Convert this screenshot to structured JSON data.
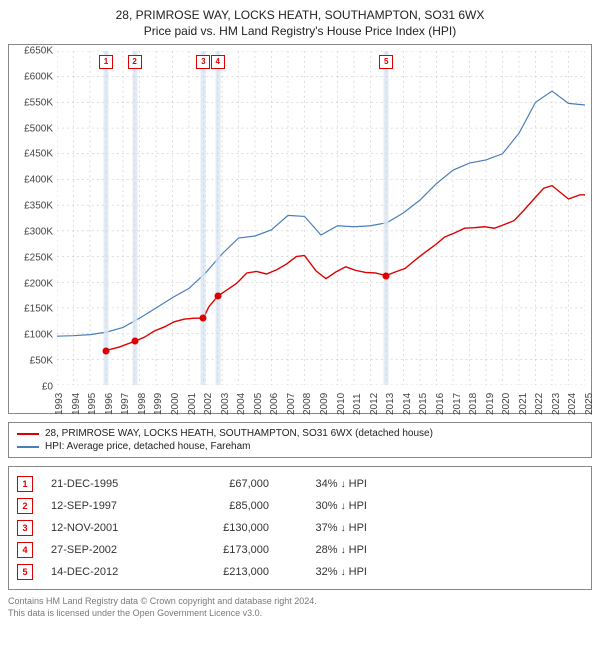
{
  "title": "28, PRIMROSE WAY, LOCKS HEATH, SOUTHAMPTON, SO31 6WX",
  "subtitle": "Price paid vs. HM Land Registry's House Price Index (HPI)",
  "chart": {
    "type": "line",
    "background_color": "#ffffff",
    "grid_color": "#bbbbbb",
    "border_color": "#888888",
    "x": {
      "min": 1993,
      "max": 2025,
      "ticks": [
        1993,
        1994,
        1995,
        1996,
        1997,
        1998,
        1999,
        2000,
        2001,
        2002,
        2003,
        2004,
        2005,
        2006,
        2007,
        2008,
        2009,
        2010,
        2011,
        2012,
        2013,
        2014,
        2015,
        2016,
        2017,
        2018,
        2019,
        2020,
        2021,
        2022,
        2023,
        2024,
        2025
      ]
    },
    "y": {
      "min": 0,
      "max": 650000,
      "ticks": [
        0,
        50000,
        100000,
        150000,
        200000,
        250000,
        300000,
        350000,
        400000,
        450000,
        500000,
        550000,
        600000,
        650000
      ],
      "tick_labels": [
        "£0",
        "£50K",
        "£100K",
        "£150K",
        "£200K",
        "£250K",
        "£300K",
        "£350K",
        "£400K",
        "£450K",
        "£500K",
        "£550K",
        "£600K",
        "£650K"
      ]
    },
    "event_band_color": "#d9e6f2",
    "series": [
      {
        "name": "28, PRIMROSE WAY, LOCKS HEATH, SOUTHAMPTON, SO31 6WX (detached house)",
        "color": "#dd0000",
        "line_width": 1.4,
        "data": [
          [
            1995.97,
            67000
          ],
          [
            1996.3,
            70000
          ],
          [
            1996.8,
            74000
          ],
          [
            1997.7,
            85000
          ],
          [
            1998.3,
            93000
          ],
          [
            1998.9,
            105000
          ],
          [
            1999.5,
            113000
          ],
          [
            2000.1,
            123000
          ],
          [
            2000.7,
            128000
          ],
          [
            2001.3,
            130000
          ],
          [
            2001.87,
            130000
          ],
          [
            2002.2,
            152000
          ],
          [
            2002.74,
            173000
          ],
          [
            2003.3,
            185000
          ],
          [
            2003.9,
            198000
          ],
          [
            2004.5,
            218000
          ],
          [
            2005.1,
            221000
          ],
          [
            2005.7,
            216000
          ],
          [
            2006.3,
            224000
          ],
          [
            2006.9,
            235000
          ],
          [
            2007.5,
            250000
          ],
          [
            2008.0,
            252000
          ],
          [
            2008.7,
            222000
          ],
          [
            2009.3,
            207000
          ],
          [
            2009.9,
            220000
          ],
          [
            2010.5,
            230000
          ],
          [
            2011.1,
            223000
          ],
          [
            2011.7,
            219000
          ],
          [
            2012.3,
            218000
          ],
          [
            2012.95,
            213000
          ],
          [
            2013.5,
            220000
          ],
          [
            2014.1,
            227000
          ],
          [
            2014.7,
            243000
          ],
          [
            2015.3,
            258000
          ],
          [
            2015.9,
            272000
          ],
          [
            2016.5,
            288000
          ],
          [
            2017.1,
            296000
          ],
          [
            2017.7,
            305000
          ],
          [
            2018.3,
            306000
          ],
          [
            2018.9,
            308000
          ],
          [
            2019.5,
            305000
          ],
          [
            2020.1,
            312000
          ],
          [
            2020.7,
            320000
          ],
          [
            2021.3,
            340000
          ],
          [
            2021.9,
            362000
          ],
          [
            2022.5,
            383000
          ],
          [
            2023.0,
            388000
          ],
          [
            2023.5,
            375000
          ],
          [
            2024.0,
            362000
          ],
          [
            2024.7,
            370000
          ],
          [
            2025.0,
            370000
          ]
        ]
      },
      {
        "name": "HPI: Average price, detached house, Fareham",
        "color": "#4a7ebb",
        "line_width": 1.2,
        "data": [
          [
            1993.0,
            95000
          ],
          [
            1994.0,
            96000
          ],
          [
            1995.0,
            98000
          ],
          [
            1996.0,
            103000
          ],
          [
            1997.0,
            112000
          ],
          [
            1998.0,
            130000
          ],
          [
            1999.0,
            150000
          ],
          [
            2000.0,
            170000
          ],
          [
            2001.0,
            188000
          ],
          [
            2002.0,
            218000
          ],
          [
            2003.0,
            255000
          ],
          [
            2004.0,
            286000
          ],
          [
            2005.0,
            290000
          ],
          [
            2006.0,
            302000
          ],
          [
            2007.0,
            330000
          ],
          [
            2008.0,
            328000
          ],
          [
            2009.0,
            292000
          ],
          [
            2010.0,
            310000
          ],
          [
            2011.0,
            308000
          ],
          [
            2012.0,
            310000
          ],
          [
            2013.0,
            316000
          ],
          [
            2014.0,
            335000
          ],
          [
            2015.0,
            360000
          ],
          [
            2016.0,
            392000
          ],
          [
            2017.0,
            418000
          ],
          [
            2018.0,
            432000
          ],
          [
            2019.0,
            438000
          ],
          [
            2020.0,
            450000
          ],
          [
            2021.0,
            490000
          ],
          [
            2022.0,
            550000
          ],
          [
            2023.0,
            572000
          ],
          [
            2024.0,
            548000
          ],
          [
            2025.0,
            545000
          ]
        ]
      }
    ],
    "sale_markers": [
      {
        "n": "1",
        "date": "21-DEC-1995",
        "x": 1995.97,
        "price": 67000,
        "price_label": "£67,000",
        "delta": "34%",
        "arrow": "↓",
        "vs": "HPI"
      },
      {
        "n": "2",
        "date": "12-SEP-1997",
        "x": 1997.7,
        "price": 85000,
        "price_label": "£85,000",
        "delta": "30%",
        "arrow": "↓",
        "vs": "HPI"
      },
      {
        "n": "3",
        "date": "12-NOV-2001",
        "x": 2001.87,
        "price": 130000,
        "price_label": "£130,000",
        "delta": "37%",
        "arrow": "↓",
        "vs": "HPI"
      },
      {
        "n": "4",
        "date": "27-SEP-2002",
        "x": 2002.74,
        "price": 173000,
        "price_label": "£173,000",
        "delta": "28%",
        "arrow": "↓",
        "vs": "HPI"
      },
      {
        "n": "5",
        "date": "14-DEC-2012",
        "x": 2012.95,
        "price": 213000,
        "price_label": "£213,000",
        "delta": "32%",
        "arrow": "↓",
        "vs": "HPI"
      }
    ]
  },
  "legend": [
    {
      "label": "28, PRIMROSE WAY, LOCKS HEATH, SOUTHAMPTON, SO31 6WX (detached house)",
      "color": "#dd0000"
    },
    {
      "label": "HPI: Average price, detached house, Fareham",
      "color": "#4a7ebb"
    }
  ],
  "footer": {
    "line1": "Contains HM Land Registry data © Crown copyright and database right 2024.",
    "line2": "This data is licensed under the Open Government Licence v3.0."
  },
  "fonts": {
    "base_size": 11,
    "title_size": 12,
    "tick_size": 10,
    "legend_size": 10,
    "footer_size": 9
  },
  "colors": {
    "text": "#333333",
    "muted": "#7a7a7a",
    "marker_red": "#dd0000"
  }
}
